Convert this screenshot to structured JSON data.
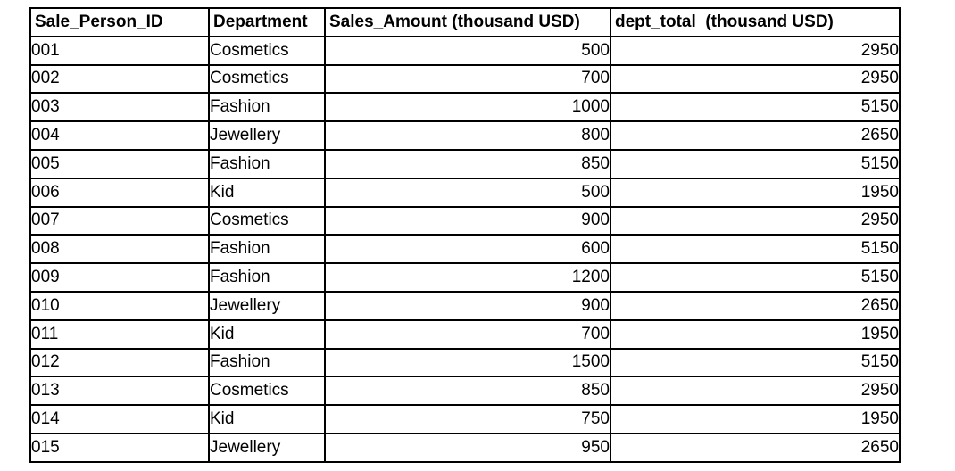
{
  "chart_data": {
    "type": "table",
    "title": "",
    "columns": [
      "Sale_Person_ID",
      "Department",
      "Sales_Amount (thousand USD)",
      "dept_total  (thousand USD)"
    ],
    "rows": [
      [
        "001",
        "Cosmetics",
        "500",
        "2950"
      ],
      [
        "002",
        "Cosmetics",
        "700",
        "2950"
      ],
      [
        "003",
        "Fashion",
        "1000",
        "5150"
      ],
      [
        "004",
        "Jewellery",
        "800",
        "2650"
      ],
      [
        "005",
        "Fashion",
        "850",
        "5150"
      ],
      [
        "006",
        "Kid",
        "500",
        "1950"
      ],
      [
        "007",
        "Cosmetics",
        "900",
        "2950"
      ],
      [
        "008",
        "Fashion",
        "600",
        "5150"
      ],
      [
        "009",
        "Fashion",
        "1200",
        "5150"
      ],
      [
        "010",
        "Jewellery",
        "900",
        "2650"
      ],
      [
        "011",
        "Kid",
        "700",
        "1950"
      ],
      [
        "012",
        "Fashion",
        "1500",
        "5150"
      ],
      [
        "013",
        "Cosmetics",
        "850",
        "2950"
      ],
      [
        "014",
        "Kid",
        "750",
        "1950"
      ],
      [
        "015",
        "Jewellery",
        "950",
        "2650"
      ]
    ],
    "layout": {
      "grid": "all-borders",
      "border_color": "#000000",
      "header_bold": true,
      "text_columns_align": "left",
      "numeric_columns_align": "right",
      "background": "#ffffff"
    }
  }
}
